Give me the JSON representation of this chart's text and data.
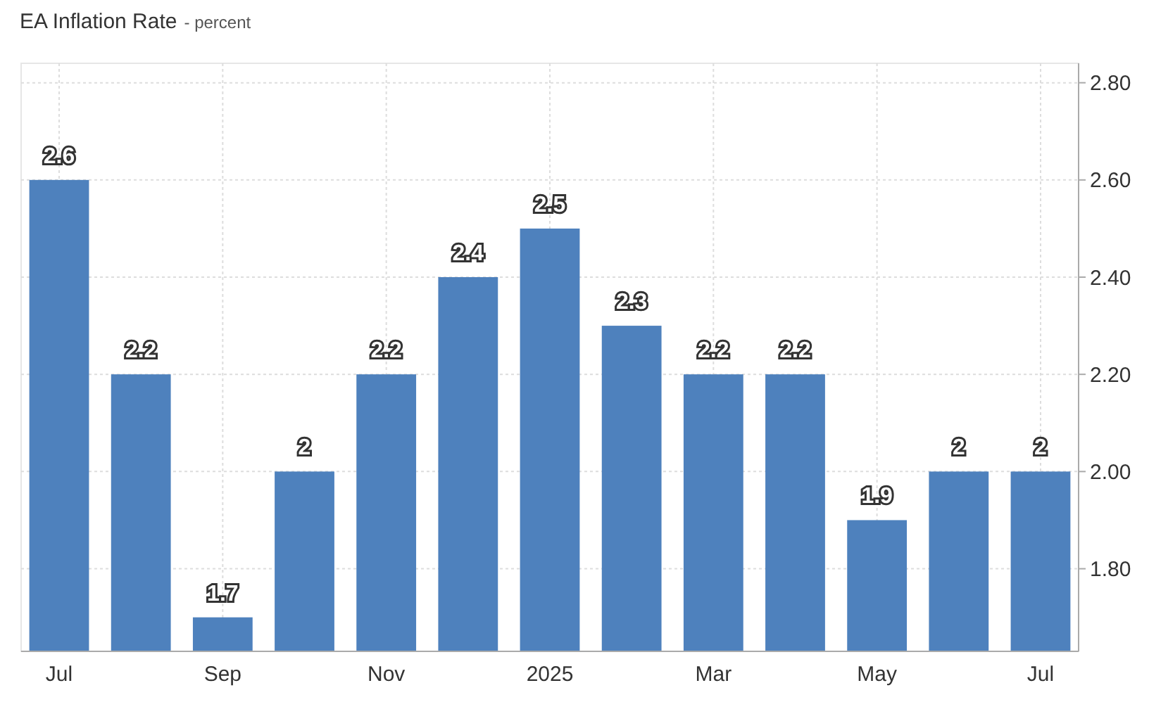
{
  "chart_data": {
    "type": "bar",
    "title": "EA Inflation Rate",
    "subtitle": "- percent",
    "categories": [
      "Jul",
      null,
      "Sep",
      null,
      "Nov",
      null,
      "2025",
      null,
      "Mar",
      null,
      "May",
      null,
      "Jul"
    ],
    "values": [
      2.6,
      2.2,
      1.7,
      2,
      2.2,
      2.4,
      2.5,
      2.3,
      2.2,
      2.2,
      1.9,
      2,
      2
    ],
    "color": "#4e81bd",
    "ylim": [
      1.63,
      2.84
    ],
    "yticks": [
      {
        "value": 1.8,
        "label": "1.80"
      },
      {
        "value": 2,
        "label": "2.00"
      },
      {
        "value": 2.2,
        "label": "2.20"
      },
      {
        "value": 2.4,
        "label": "2.40"
      },
      {
        "value": 2.6,
        "label": "2.60"
      },
      {
        "value": 2.8,
        "label": "2.80"
      }
    ],
    "grid": true,
    "data_labels": true
  }
}
